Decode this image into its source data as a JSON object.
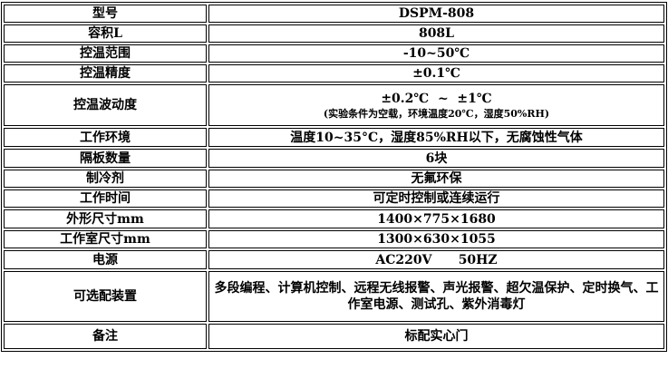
{
  "rows": [
    {
      "label": "型号",
      "value": "DSPM-808"
    },
    {
      "label": "容积L",
      "value": "808L"
    },
    {
      "label": "控温范围",
      "value": "-10~50℃"
    },
    {
      "label": "控温精度",
      "value": "±0.1℃"
    },
    {
      "label": "控温波动度",
      "value": "±0.2℃  ~  ±1℃",
      "note": "(实验条件为空载，环境温度20℃，湿度50%RH)"
    },
    {
      "label": "工作环境",
      "value": "温度10~35°C，湿度85%RH以下，无腐蚀性气体"
    },
    {
      "label": "隔板数量",
      "value": "6块"
    },
    {
      "label": "制冷剂",
      "value": "无氟环保"
    },
    {
      "label": "工作时间",
      "value": "可定时控制或连续运行"
    },
    {
      "label": "外形尺寸mm",
      "value": "1400×775×1680"
    },
    {
      "label": "工作室尺寸mm",
      "value": "1300×630×1055"
    },
    {
      "label": "电源",
      "value": "AC220V      50HZ"
    },
    {
      "label": "可选配装置",
      "value": "多段编程、计算机控制、远程无线报警、声光报警、超欠温保护、定时换气、工作室电源、测试孔、紫外消毒灯"
    },
    {
      "label": "备注",
      "value": "标配实心门"
    }
  ]
}
